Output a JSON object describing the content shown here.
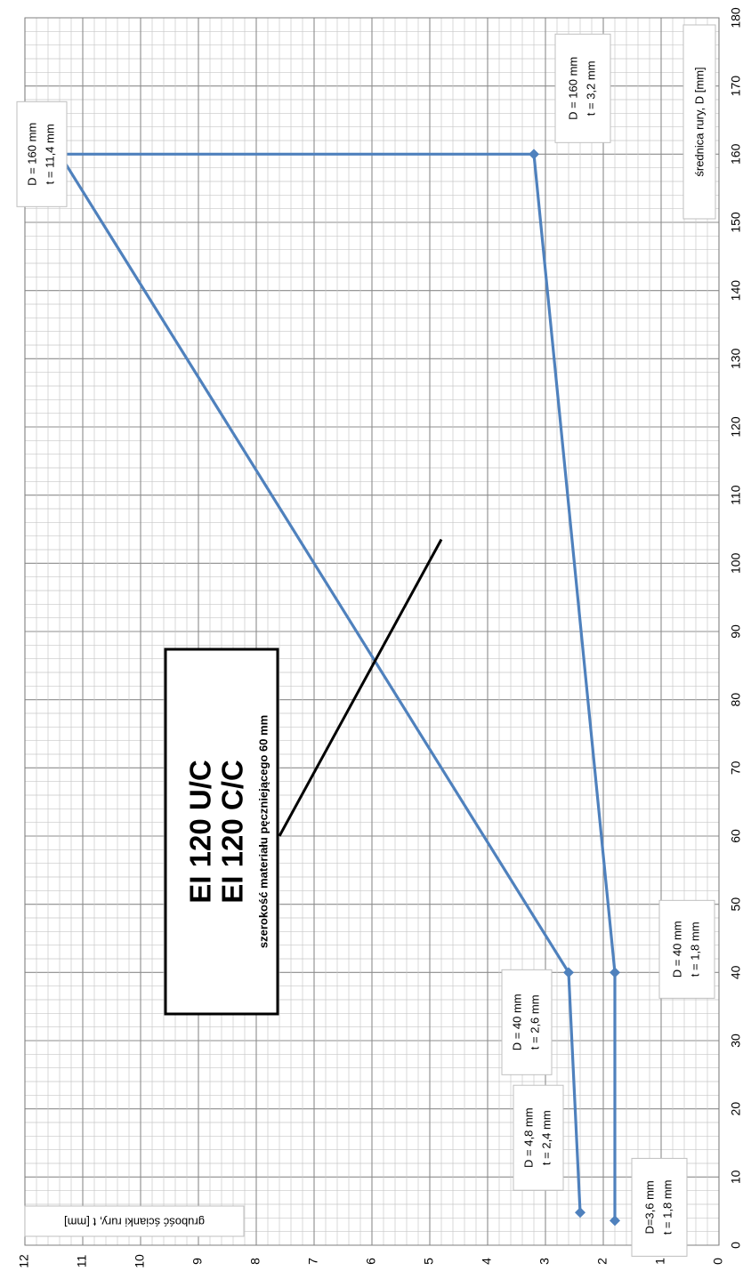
{
  "chart_data": {
    "type": "line",
    "orientation": "rotated-90-ccw",
    "x_axis": {
      "label": "średnica rury, D [mm]",
      "range": [
        0,
        180
      ],
      "major_step": 10,
      "minor_step": 2,
      "ticks": [
        "0",
        "10",
        "20",
        "30",
        "40",
        "50",
        "60",
        "70",
        "80",
        "90",
        "100",
        "110",
        "120",
        "130",
        "140",
        "150",
        "160",
        "170",
        "180"
      ]
    },
    "y_axis": {
      "label": "grubość ścianki rury, t [mm]",
      "range": [
        0,
        12
      ],
      "major_step": 1,
      "minor_step": 0.2,
      "ticks": [
        "0",
        "1",
        "2",
        "3",
        "4",
        "5",
        "6",
        "7",
        "8",
        "9",
        "10",
        "11",
        "12"
      ]
    },
    "grid": true,
    "series": [
      {
        "color": "#4f81bd",
        "points": [
          {
            "x": 3.6,
            "y": 1.8
          },
          {
            "x": 40,
            "y": 1.8
          },
          {
            "x": 160,
            "y": 3.2
          },
          {
            "x": 160,
            "y": 11.4
          },
          {
            "x": 40,
            "y": 2.6
          },
          {
            "x": 4.8,
            "y": 2.4
          }
        ]
      }
    ],
    "point_labels": [
      {
        "x": 160,
        "y": 11.4,
        "lines": [
          "D = 160 mm",
          "t = 11,4 mm"
        ]
      },
      {
        "x": 160,
        "y": 3.2,
        "lines": [
          "D = 160 mm",
          "t = 3,2 mm"
        ]
      },
      {
        "x": 40,
        "y": 1.8,
        "lines": [
          "D = 40 mm",
          "t = 1,8 mm"
        ]
      },
      {
        "x": 40,
        "y": 2.6,
        "lines": [
          "D = 40 mm",
          "t = 2,6 mm"
        ]
      },
      {
        "x": 4.8,
        "y": 2.4,
        "lines": [
          "D = 4,8 mm",
          "t = 2,4 mm"
        ]
      },
      {
        "x": 3.6,
        "y": 1.8,
        "lines": [
          "D=3,6 mm",
          "t = 1,8 mm"
        ]
      }
    ],
    "callout": {
      "line1": "EI 120 U/C",
      "line2": "EI 120 C/C",
      "line3": "szerokość materiału pęczniejącego 60 mm",
      "pointer_color": "#000000",
      "pointer_from": {
        "x": 60,
        "y": 7.6
      },
      "pointer_to": {
        "x": 103.5,
        "y": 4.8
      }
    }
  }
}
